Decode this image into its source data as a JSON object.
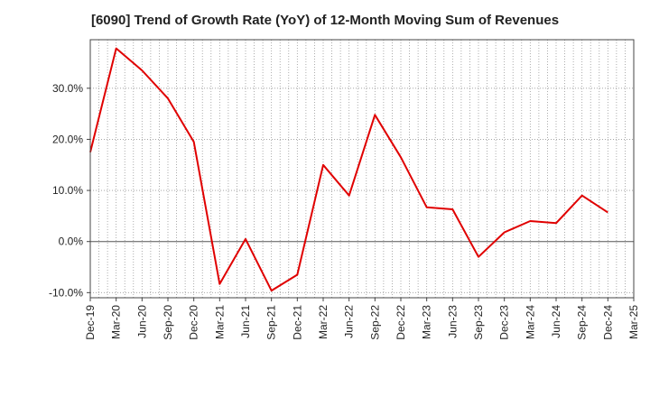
{
  "chart_data": {
    "type": "line",
    "title": "[6090]  Trend of Growth Rate (YoY) of 12-Month Moving Sum of Revenues",
    "xlabel": "",
    "ylabel": "",
    "x_ticks": [
      "Dec-19",
      "Mar-20",
      "Jun-20",
      "Sep-20",
      "Dec-20",
      "Mar-21",
      "Jun-21",
      "Sep-21",
      "Dec-21",
      "Mar-22",
      "Jun-22",
      "Sep-22",
      "Dec-22",
      "Mar-23",
      "Jun-23",
      "Sep-23",
      "Dec-23",
      "Mar-24",
      "Jun-24",
      "Sep-24",
      "Dec-24",
      "Mar-25"
    ],
    "y_ticks": [
      "30.0%",
      "20.0%",
      "10.0%",
      "0.0%",
      "-10.0%"
    ],
    "y_tick_values": [
      30,
      20,
      10,
      0,
      -10
    ],
    "ylim": [
      -11,
      39.5
    ],
    "grid": true,
    "series": [
      {
        "color": "#e00000",
        "points": [
          {
            "x": "Dec-19",
            "y": 17.5
          },
          {
            "x": "Mar-20",
            "y": 37.8
          },
          {
            "x": "Jun-20",
            "y": 33.5
          },
          {
            "x": "Sep-20",
            "y": 28.0
          },
          {
            "x": "Dec-20",
            "y": 19.5
          },
          {
            "x": "Mar-21",
            "y": -8.3
          },
          {
            "x": "Jun-21",
            "y": 0.5
          },
          {
            "x": "Sep-21",
            "y": -9.6
          },
          {
            "x": "Dec-21",
            "y": -6.5
          },
          {
            "x": "Mar-22",
            "y": 15.0
          },
          {
            "x": "Jun-22",
            "y": 9.0
          },
          {
            "x": "Sep-22",
            "y": 24.8
          },
          {
            "x": "Dec-22",
            "y": 16.5
          },
          {
            "x": "Mar-23",
            "y": 6.7
          },
          {
            "x": "Jun-23",
            "y": 6.3
          },
          {
            "x": "Sep-23",
            "y": -3.0
          },
          {
            "x": "Dec-23",
            "y": 1.8
          },
          {
            "x": "Mar-24",
            "y": 4.0
          },
          {
            "x": "Jun-24",
            "y": 3.6
          },
          {
            "x": "Sep-24",
            "y": 9.0
          },
          {
            "x": "Dec-24",
            "y": 5.7
          }
        ]
      }
    ]
  }
}
